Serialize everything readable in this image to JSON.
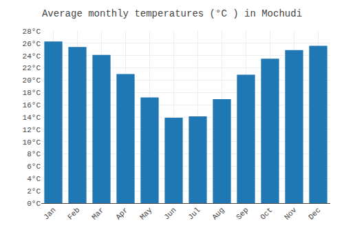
{
  "chart_data": {
    "type": "bar",
    "title": "Average monthly temperatures (°C ) in Mochudi",
    "categories": [
      "Jan",
      "Feb",
      "Mar",
      "Apr",
      "May",
      "Jun",
      "Jul",
      "Aug",
      "Sep",
      "Oct",
      "Nov",
      "Dec"
    ],
    "values": [
      26.3,
      25.4,
      24.1,
      21.0,
      17.2,
      13.9,
      14.1,
      16.9,
      20.9,
      23.5,
      24.9,
      25.6
    ],
    "ylim": [
      0,
      28
    ],
    "yticks": [
      {
        "value": 0,
        "label": "0°C"
      },
      {
        "value": 2,
        "label": "2°C"
      },
      {
        "value": 4,
        "label": "4°C"
      },
      {
        "value": 6,
        "label": "6°C"
      },
      {
        "value": 8,
        "label": "8°C"
      },
      {
        "value": 10,
        "label": "10°C"
      },
      {
        "value": 12,
        "label": "12°C"
      },
      {
        "value": 14,
        "label": "14°C"
      },
      {
        "value": 16,
        "label": "16°C"
      },
      {
        "value": 18,
        "label": "18°C"
      },
      {
        "value": 20,
        "label": "20°C"
      },
      {
        "value": 22,
        "label": "22°C"
      },
      {
        "value": 24,
        "label": "24°C"
      },
      {
        "value": 26,
        "label": "26°C"
      },
      {
        "value": 28,
        "label": "28°C"
      }
    ],
    "grid": true
  }
}
